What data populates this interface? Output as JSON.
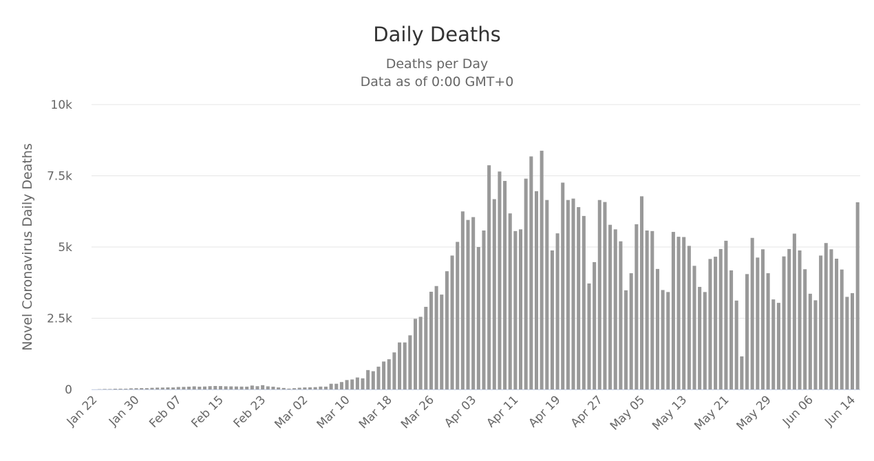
{
  "chart_data": {
    "type": "bar",
    "title": "Daily Deaths",
    "subtitle": [
      "Deaths per Day",
      "Data as of 0:00 GMT+0"
    ],
    "y_label": "Novel Coronavirus Daily Deaths",
    "color": "#999999",
    "categories": [
      "Jan 22",
      null,
      null,
      null,
      null,
      null,
      null,
      null,
      "Jan 30",
      null,
      null,
      null,
      null,
      null,
      null,
      null,
      "Feb 07",
      null,
      null,
      null,
      null,
      null,
      null,
      null,
      "Feb 15",
      null,
      null,
      null,
      null,
      null,
      null,
      null,
      "Feb 23",
      null,
      null,
      null,
      null,
      null,
      null,
      null,
      "Mar 02",
      null,
      null,
      null,
      null,
      null,
      null,
      null,
      "Mar 10",
      null,
      null,
      null,
      null,
      null,
      null,
      null,
      "Mar 18",
      null,
      null,
      null,
      null,
      null,
      null,
      null,
      "Mar 26",
      null,
      null,
      null,
      null,
      null,
      null,
      null,
      "Apr 03",
      null,
      null,
      null,
      null,
      null,
      null,
      null,
      "Apr 11",
      null,
      null,
      null,
      null,
      null,
      null,
      null,
      "Apr 19",
      null,
      null,
      null,
      null,
      null,
      null,
      null,
      "Apr 27",
      null,
      null,
      null,
      null,
      null,
      null,
      null,
      "May 05",
      null,
      null,
      null,
      null,
      null,
      null,
      null,
      "May 13",
      null,
      null,
      null,
      null,
      null,
      null,
      null,
      "May 21",
      null,
      null,
      null,
      null,
      null,
      null,
      null,
      "May 29",
      null,
      null,
      null,
      null,
      null,
      null,
      null,
      "Jun 06",
      null,
      null,
      null,
      null,
      null,
      null,
      null,
      "Jun 14",
      null
    ],
    "values": [
      0,
      8,
      16,
      15,
      24,
      26,
      26,
      38,
      43,
      46,
      45,
      57,
      64,
      66,
      72,
      70,
      86,
      89,
      97,
      108,
      97,
      103,
      115,
      121,
      118,
      110,
      107,
      104,
      100,
      98,
      136,
      114,
      150,
      109,
      97,
      71,
      52,
      29,
      44,
      60,
      70,
      74,
      81,
      100,
      98,
      200,
      200,
      260,
      330,
      350,
      420,
      390,
      680,
      640,
      800,
      980,
      1060,
      1300,
      1650,
      1650,
      1900,
      2480,
      2550,
      2900,
      3430,
      3630,
      3330,
      4150,
      4700,
      5180,
      6250,
      5950,
      6050,
      5000,
      5580,
      7870,
      6680,
      7650,
      7320,
      6180,
      5560,
      5620,
      7400,
      8180,
      6960,
      8380,
      6650,
      4880,
      5480,
      7260,
      6650,
      6700,
      6400,
      6090,
      3720,
      4470,
      6650,
      6580,
      5780,
      5620,
      5200,
      3480,
      4080,
      5800,
      6780,
      5580,
      5560,
      4230,
      3490,
      3420,
      5530,
      5360,
      5350,
      5040,
      4340,
      3600,
      3420,
      4580,
      4660,
      4930,
      5220,
      4180,
      3120,
      1160,
      4050,
      5320,
      4630,
      4920,
      4080,
      3160,
      3040,
      4670,
      4930,
      5470,
      4880,
      4220,
      3360,
      3130,
      4700,
      5140,
      4920,
      4590,
      4210,
      3250,
      3380,
      6570
    ],
    "ylim": [
      0,
      10000
    ],
    "yticks": [
      0,
      {
        "value": 2500,
        "label": "2.5k"
      },
      {
        "value": 5000,
        "label": "5k"
      },
      {
        "value": 7500,
        "label": "7.5k"
      },
      {
        "value": 10000,
        "label": "10k"
      }
    ],
    "grid": true
  }
}
